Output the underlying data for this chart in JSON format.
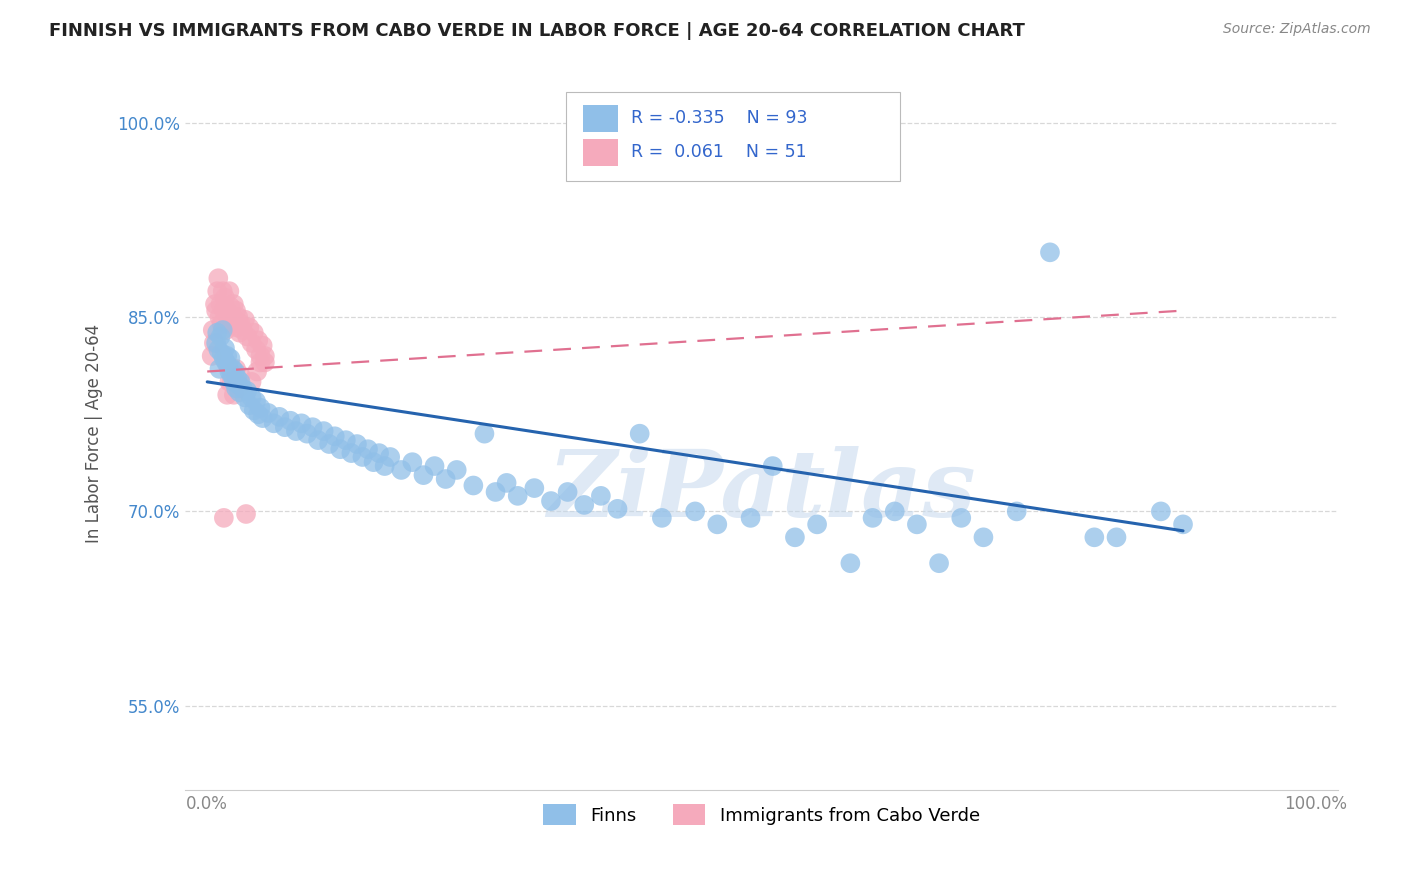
{
  "title": "FINNISH VS IMMIGRANTS FROM CABO VERDE IN LABOR FORCE | AGE 20-64 CORRELATION CHART",
  "source": "Source: ZipAtlas.com",
  "ylabel": "In Labor Force | Age 20-64",
  "xlim": [
    -0.02,
    1.02
  ],
  "ylim": [
    0.485,
    1.035
  ],
  "yticks": [
    0.55,
    0.7,
    0.85,
    1.0
  ],
  "ytick_labels": [
    "55.0%",
    "70.0%",
    "85.0%",
    "100.0%"
  ],
  "xticks": [
    0.0,
    1.0
  ],
  "xtick_labels": [
    "0.0%",
    "100.0%"
  ],
  "finns_color": "#90bfe8",
  "immigrants_color": "#f5aabc",
  "trend_finns_color": "#2563ae",
  "trend_immigrants_color": "#e07090",
  "title_color": "#222222",
  "grid_color": "#d8d8d8",
  "background_color": "#ffffff",
  "watermark": "ZiPatlas",
  "finns_scatter": [
    [
      0.008,
      0.83
    ],
    [
      0.009,
      0.838
    ],
    [
      0.01,
      0.825
    ],
    [
      0.011,
      0.81
    ],
    [
      0.012,
      0.835
    ],
    [
      0.013,
      0.822
    ],
    [
      0.014,
      0.84
    ],
    [
      0.015,
      0.818
    ],
    [
      0.016,
      0.826
    ],
    [
      0.017,
      0.815
    ],
    [
      0.018,
      0.82
    ],
    [
      0.019,
      0.812
    ],
    [
      0.02,
      0.808
    ],
    [
      0.021,
      0.818
    ],
    [
      0.022,
      0.805
    ],
    [
      0.023,
      0.81
    ],
    [
      0.024,
      0.8
    ],
    [
      0.025,
      0.808
    ],
    [
      0.026,
      0.795
    ],
    [
      0.027,
      0.803
    ],
    [
      0.028,
      0.798
    ],
    [
      0.029,
      0.792
    ],
    [
      0.03,
      0.8
    ],
    [
      0.032,
      0.795
    ],
    [
      0.034,
      0.788
    ],
    [
      0.036,
      0.793
    ],
    [
      0.038,
      0.782
    ],
    [
      0.04,
      0.788
    ],
    [
      0.042,
      0.778
    ],
    [
      0.044,
      0.785
    ],
    [
      0.046,
      0.775
    ],
    [
      0.048,
      0.78
    ],
    [
      0.05,
      0.772
    ],
    [
      0.055,
      0.776
    ],
    [
      0.06,
      0.768
    ],
    [
      0.065,
      0.773
    ],
    [
      0.07,
      0.765
    ],
    [
      0.075,
      0.77
    ],
    [
      0.08,
      0.762
    ],
    [
      0.085,
      0.768
    ],
    [
      0.09,
      0.76
    ],
    [
      0.095,
      0.765
    ],
    [
      0.1,
      0.755
    ],
    [
      0.105,
      0.762
    ],
    [
      0.11,
      0.752
    ],
    [
      0.115,
      0.758
    ],
    [
      0.12,
      0.748
    ],
    [
      0.125,
      0.755
    ],
    [
      0.13,
      0.745
    ],
    [
      0.135,
      0.752
    ],
    [
      0.14,
      0.742
    ],
    [
      0.145,
      0.748
    ],
    [
      0.15,
      0.738
    ],
    [
      0.155,
      0.745
    ],
    [
      0.16,
      0.735
    ],
    [
      0.165,
      0.742
    ],
    [
      0.175,
      0.732
    ],
    [
      0.185,
      0.738
    ],
    [
      0.195,
      0.728
    ],
    [
      0.205,
      0.735
    ],
    [
      0.215,
      0.725
    ],
    [
      0.225,
      0.732
    ],
    [
      0.24,
      0.72
    ],
    [
      0.25,
      0.76
    ],
    [
      0.26,
      0.715
    ],
    [
      0.27,
      0.722
    ],
    [
      0.28,
      0.712
    ],
    [
      0.295,
      0.718
    ],
    [
      0.31,
      0.708
    ],
    [
      0.325,
      0.715
    ],
    [
      0.34,
      0.705
    ],
    [
      0.355,
      0.712
    ],
    [
      0.37,
      0.702
    ],
    [
      0.39,
      0.76
    ],
    [
      0.41,
      0.695
    ],
    [
      0.44,
      0.7
    ],
    [
      0.46,
      0.69
    ],
    [
      0.49,
      0.695
    ],
    [
      0.51,
      0.735
    ],
    [
      0.53,
      0.68
    ],
    [
      0.55,
      0.69
    ],
    [
      0.58,
      0.66
    ],
    [
      0.6,
      0.695
    ],
    [
      0.62,
      0.7
    ],
    [
      0.64,
      0.69
    ],
    [
      0.66,
      0.66
    ],
    [
      0.68,
      0.695
    ],
    [
      0.7,
      0.68
    ],
    [
      0.73,
      0.7
    ],
    [
      0.76,
      0.9
    ],
    [
      0.8,
      0.68
    ],
    [
      0.82,
      0.68
    ],
    [
      0.86,
      0.7
    ],
    [
      0.88,
      0.69
    ]
  ],
  "immigrants_scatter": [
    [
      0.004,
      0.82
    ],
    [
      0.005,
      0.84
    ],
    [
      0.006,
      0.83
    ],
    [
      0.007,
      0.86
    ],
    [
      0.008,
      0.855
    ],
    [
      0.009,
      0.87
    ],
    [
      0.01,
      0.88
    ],
    [
      0.011,
      0.85
    ],
    [
      0.012,
      0.86
    ],
    [
      0.013,
      0.845
    ],
    [
      0.014,
      0.87
    ],
    [
      0.015,
      0.855
    ],
    [
      0.016,
      0.865
    ],
    [
      0.017,
      0.84
    ],
    [
      0.018,
      0.855
    ],
    [
      0.019,
      0.845
    ],
    [
      0.02,
      0.87
    ],
    [
      0.021,
      0.858
    ],
    [
      0.022,
      0.85
    ],
    [
      0.023,
      0.845
    ],
    [
      0.024,
      0.86
    ],
    [
      0.025,
      0.848
    ],
    [
      0.026,
      0.855
    ],
    [
      0.027,
      0.842
    ],
    [
      0.028,
      0.85
    ],
    [
      0.029,
      0.838
    ],
    [
      0.03,
      0.845
    ],
    [
      0.032,
      0.84
    ],
    [
      0.034,
      0.848
    ],
    [
      0.036,
      0.835
    ],
    [
      0.038,
      0.842
    ],
    [
      0.04,
      0.83
    ],
    [
      0.042,
      0.838
    ],
    [
      0.044,
      0.825
    ],
    [
      0.046,
      0.832
    ],
    [
      0.048,
      0.82
    ],
    [
      0.05,
      0.828
    ],
    [
      0.052,
      0.815
    ],
    [
      0.022,
      0.8
    ],
    [
      0.024,
      0.79
    ],
    [
      0.026,
      0.81
    ],
    [
      0.028,
      0.795
    ],
    [
      0.03,
      0.805
    ],
    [
      0.035,
      0.698
    ],
    [
      0.04,
      0.8
    ],
    [
      0.045,
      0.808
    ],
    [
      0.048,
      0.815
    ],
    [
      0.052,
      0.82
    ],
    [
      0.018,
      0.79
    ],
    [
      0.02,
      0.8
    ],
    [
      0.015,
      0.695
    ]
  ],
  "finns_trend": [
    0.0,
    0.8,
    0.85,
    0.685
  ],
  "immigrants_trend": [
    0.0,
    0.808,
    0.85,
    0.855
  ]
}
